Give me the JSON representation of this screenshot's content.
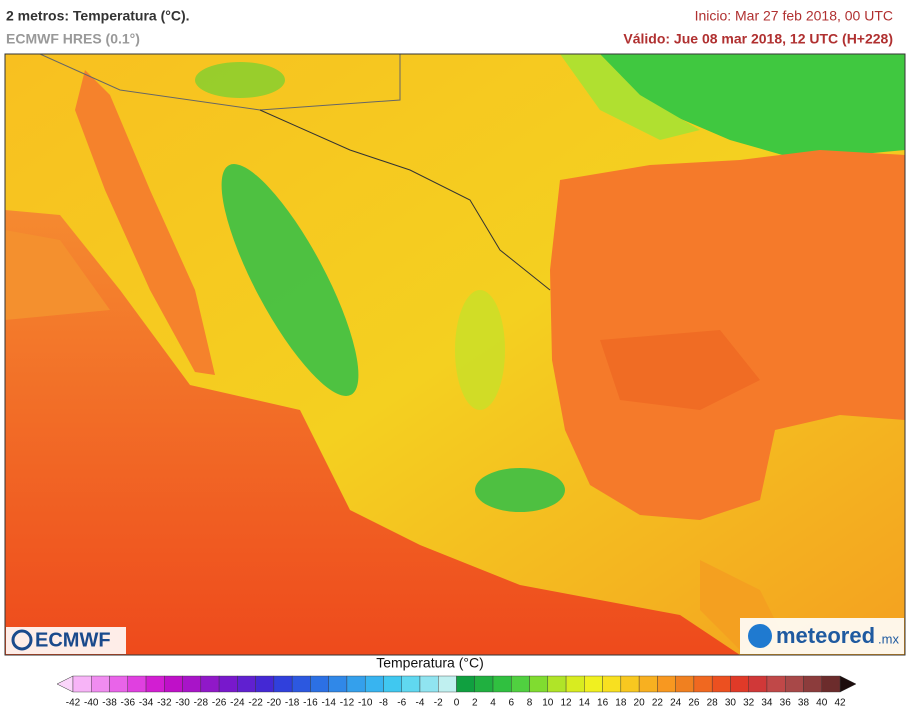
{
  "header": {
    "title": "2 metros: Temperatura (°C).",
    "model": "ECMWF HRES (0.1°)",
    "init": "Inicio: Mar 27 feb 2018, 00 UTC",
    "valid": "Válido: Jue 08 mar 2018, 12 UTC (H+228)"
  },
  "logos": {
    "left": "ECMWF",
    "right": "meteored",
    "right_suffix": ".mx"
  },
  "legend": {
    "title": "Temperatura (°C)",
    "labels": [
      -42,
      -40,
      -38,
      -36,
      -34,
      -32,
      -30,
      -28,
      -26,
      -24,
      -22,
      -20,
      -18,
      -16,
      -14,
      -12,
      -10,
      -8,
      -6,
      -4,
      -2,
      0,
      2,
      4,
      6,
      8,
      10,
      12,
      14,
      16,
      18,
      20,
      22,
      24,
      26,
      28,
      30,
      32,
      34,
      36,
      38,
      40,
      42
    ],
    "low_color": "#fbd6fb",
    "high_color": "#1c0c0c",
    "colors": [
      "#f7b4f7",
      "#f08cf0",
      "#e964e9",
      "#e040e0",
      "#d21ed2",
      "#bf10c8",
      "#a814c8",
      "#9018c8",
      "#7818cc",
      "#6020d0",
      "#4428d4",
      "#3040dc",
      "#2c58e0",
      "#2c70e4",
      "#3088e8",
      "#34a0ec",
      "#38b4f0",
      "#40c8f0",
      "#60d8f0",
      "#90e4f0",
      "#c0f0f0",
      "#10a040",
      "#20b040",
      "#30c040",
      "#50d040",
      "#80dc30",
      "#b0e428",
      "#d8ec20",
      "#f0f020",
      "#f8e020",
      "#f8c820",
      "#f8b020",
      "#f89820",
      "#f08020",
      "#f06820",
      "#ec5020",
      "#e03a28",
      "#d03838",
      "#c04848",
      "#a84848",
      "#8c3c3c",
      "#6c2c2c"
    ]
  }
}
